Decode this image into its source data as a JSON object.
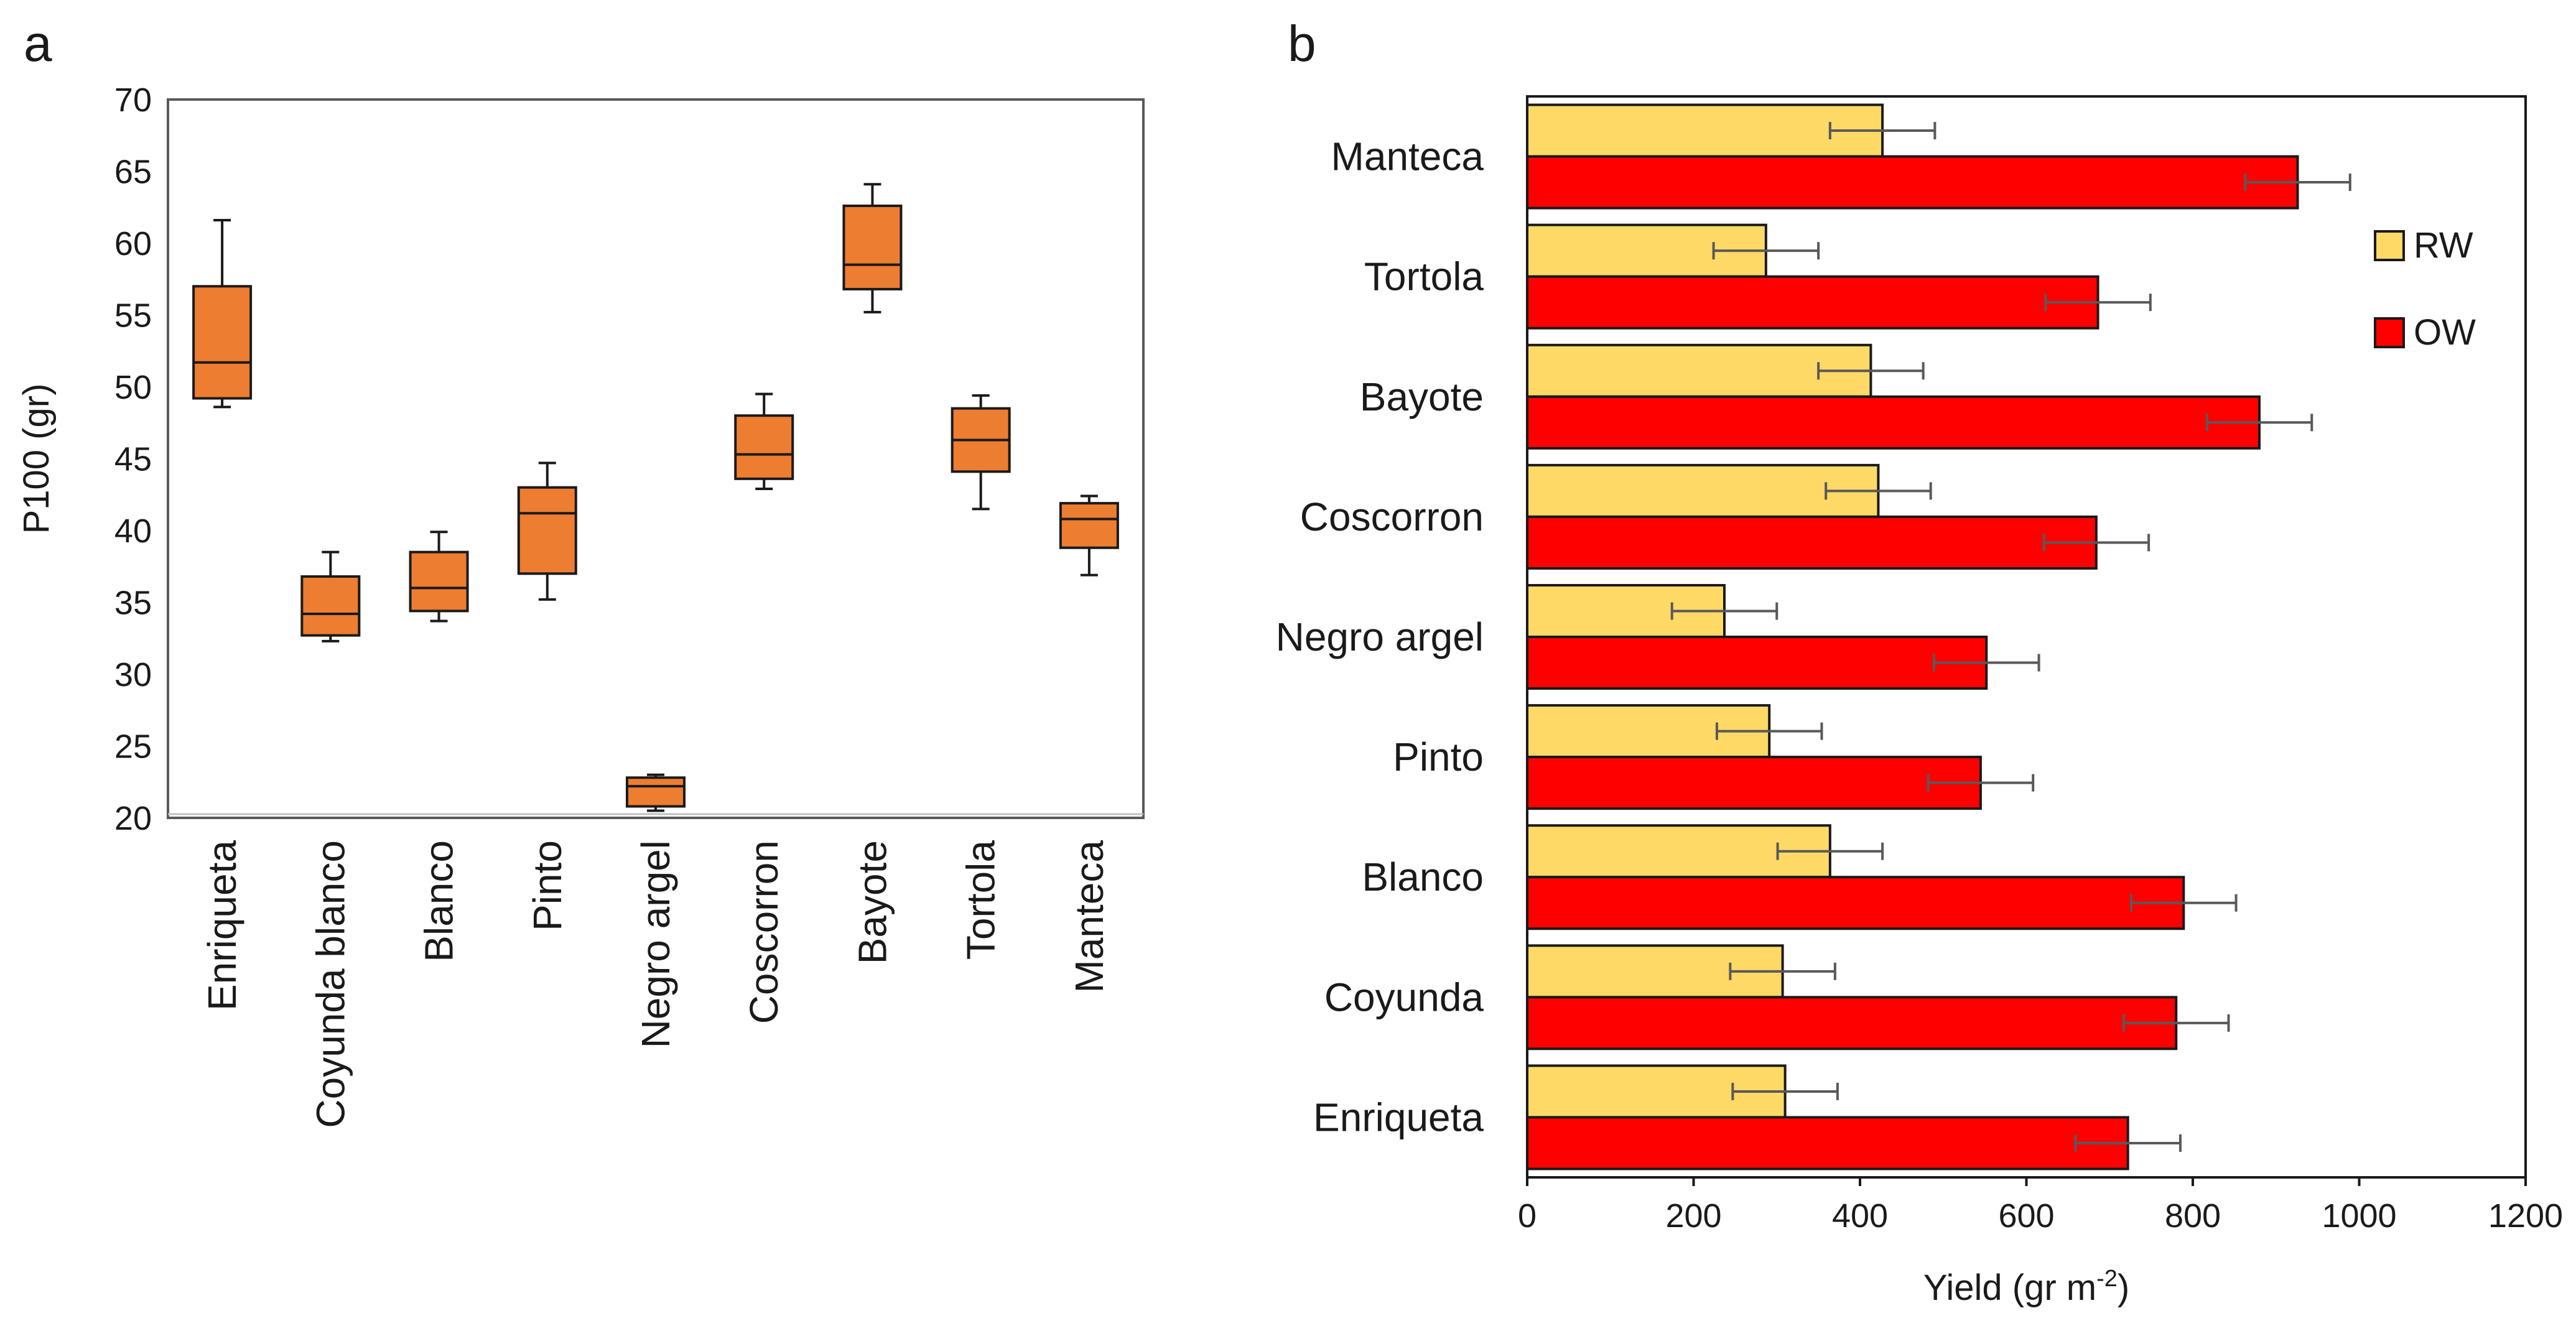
{
  "panel_labels": {
    "a": "a",
    "b": "b"
  },
  "chart_data": [
    {
      "type": "box",
      "panel": "a",
      "title": "",
      "xlabel": "",
      "ylabel": "P100 (gr)",
      "ylim": [
        20,
        70
      ],
      "yticks": [
        20,
        25,
        30,
        35,
        40,
        45,
        50,
        55,
        60,
        65,
        70
      ],
      "categories": [
        "Enriqueta",
        "Coyunda blanco",
        "Blanco",
        "Pinto",
        "Negro argel",
        "Coscorron",
        "Bayote",
        "Tortola",
        "Manteca"
      ],
      "boxes": [
        {
          "min": 48.6,
          "q1": 49.2,
          "median": 51.7,
          "q3": 57.0,
          "max": 61.6
        },
        {
          "min": 32.3,
          "q1": 32.7,
          "median": 34.2,
          "q3": 36.8,
          "max": 38.5
        },
        {
          "min": 33.7,
          "q1": 34.4,
          "median": 36.0,
          "q3": 38.5,
          "max": 39.9
        },
        {
          "min": 35.2,
          "q1": 37.0,
          "median": 41.2,
          "q3": 43.0,
          "max": 44.7
        },
        {
          "min": 20.5,
          "q1": 20.8,
          "median": 22.2,
          "q3": 22.8,
          "max": 23.0
        },
        {
          "min": 42.9,
          "q1": 43.6,
          "median": 45.3,
          "q3": 48.0,
          "max": 49.5
        },
        {
          "min": 55.2,
          "q1": 56.8,
          "median": 58.5,
          "q3": 62.6,
          "max": 64.1
        },
        {
          "min": 41.5,
          "q1": 44.1,
          "median": 46.3,
          "q3": 48.5,
          "max": 49.4
        },
        {
          "min": 36.9,
          "q1": 38.8,
          "median": 40.8,
          "q3": 41.9,
          "max": 42.4
        }
      ],
      "box_color": "#ED7D31"
    },
    {
      "type": "bar",
      "orientation": "horizontal",
      "panel": "b",
      "title": "",
      "xlabel": "Yield (gr m",
      "xlabel_superscript": "-2",
      "xlabel_suffix": ")",
      "ylabel": "",
      "xlim": [
        0,
        1200
      ],
      "xticks": [
        0,
        200,
        400,
        600,
        800,
        1000,
        1200
      ],
      "categories": [
        "Manteca",
        "Tortola",
        "Bayote",
        "Coscorron",
        "Negro argel",
        "Pinto",
        "Blanco",
        "Coyunda",
        "Enriqueta"
      ],
      "series": [
        {
          "name": "RW",
          "color": "#FFD966",
          "values": [
            427,
            287,
            413,
            422,
            237,
            291,
            364,
            307,
            310
          ],
          "errors": [
            63,
            63,
            63,
            63,
            63,
            63,
            63,
            63,
            63
          ]
        },
        {
          "name": "OW",
          "color": "#FF0000",
          "values": [
            926,
            686,
            880,
            684,
            552,
            545,
            789,
            780,
            722
          ],
          "errors": [
            63,
            63,
            63,
            63,
            63,
            63,
            63,
            63,
            63
          ]
        }
      ],
      "legend": [
        "RW",
        "OW"
      ],
      "legend_position": "right"
    }
  ]
}
